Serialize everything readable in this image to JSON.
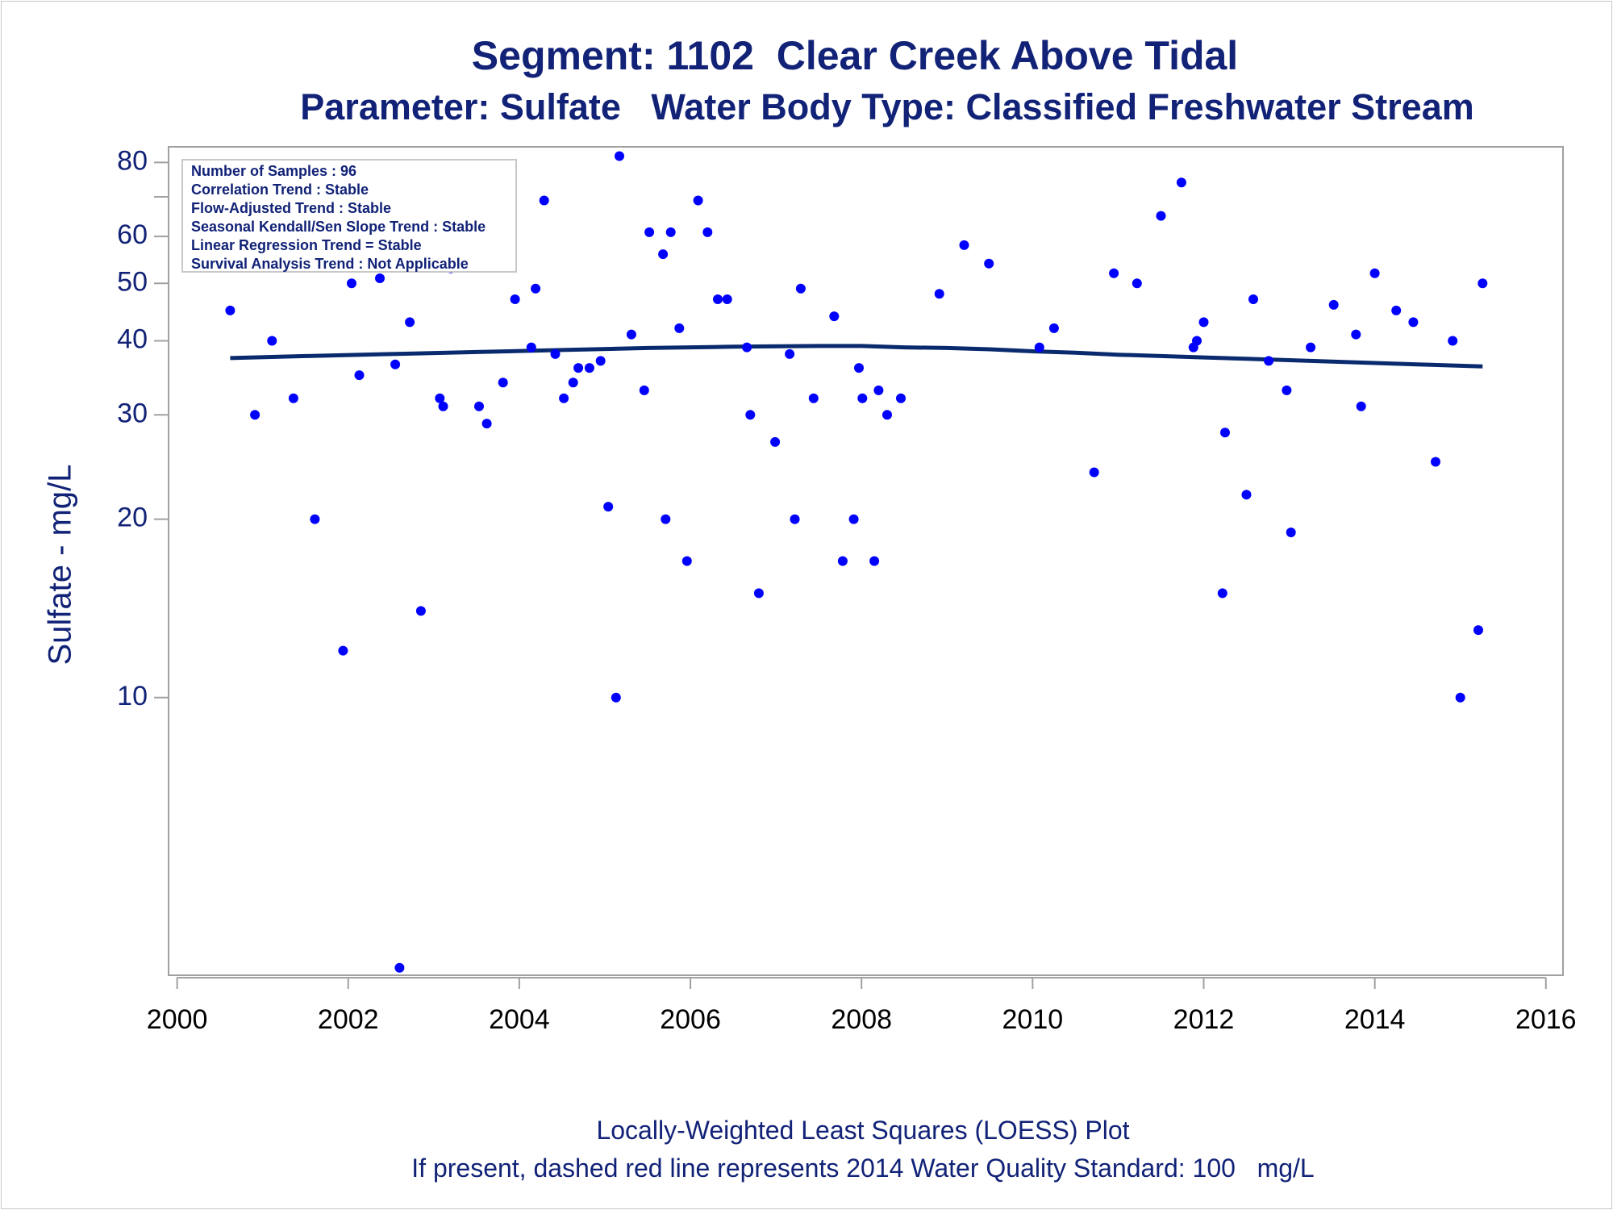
{
  "title": "Segment: 1102  Clear Creek Above Tidal",
  "subtitle": "Parameter: Sulfate   Water Body Type: Classified Freshwater Stream",
  "footnotes": [
    "Locally-Weighted Least Squares (LOESS) Plot",
    "If present, dashed red line represents 2014 Water Quality Standard: 100   mg/L"
  ],
  "stats_box": [
    "Number of Samples : 96",
    "Correlation Trend : Stable",
    "Flow-Adjusted Trend : Stable",
    "Seasonal Kendall/Sen Slope Trend : Stable",
    "Linear Regression Trend = Stable",
    "Survival Analysis Trend : Not Applicable"
  ],
  "colors": {
    "text": "#112277",
    "points": "#0000ff",
    "loess": "#0a2a6e",
    "frame": "#a0a0a0"
  },
  "chart_data": {
    "type": "scatter",
    "title": "Segment: 1102  Clear Creek Above Tidal",
    "subtitle": "Parameter: Sulfate   Water Body Type: Classified Freshwater Stream",
    "xlabel": "",
    "ylabel": "Sulfate - mg/L",
    "yscale": "log",
    "xlim": [
      1999.9,
      2016.2
    ],
    "ylim": [
      3.4,
      85
    ],
    "x_ticks": [
      2000,
      2002,
      2004,
      2006,
      2008,
      2010,
      2012,
      2014,
      2016
    ],
    "y_ticks": [
      10,
      20,
      30,
      40,
      50,
      60,
      80
    ],
    "y_minor_ticks": [
      70
    ],
    "grid": false,
    "series": [
      {
        "type": "scatter",
        "points": [
          [
            2000.62,
            45
          ],
          [
            2000.91,
            30
          ],
          [
            2001.11,
            40
          ],
          [
            2001.36,
            32
          ],
          [
            2001.61,
            20
          ],
          [
            2001.94,
            12
          ],
          [
            2002.04,
            50
          ],
          [
            2002.13,
            35
          ],
          [
            2002.2,
            55
          ],
          [
            2002.37,
            51
          ],
          [
            2002.55,
            36.5
          ],
          [
            2002.6,
            3.5
          ],
          [
            2002.72,
            43
          ],
          [
            2002.85,
            14
          ],
          [
            2003.07,
            32
          ],
          [
            2003.11,
            31
          ],
          [
            2003.2,
            53
          ],
          [
            2003.35,
            57
          ],
          [
            2003.42,
            67
          ],
          [
            2003.53,
            31
          ],
          [
            2003.62,
            29
          ],
          [
            2003.81,
            34
          ],
          [
            2003.95,
            47
          ],
          [
            2004.14,
            39
          ],
          [
            2004.19,
            49
          ],
          [
            2004.29,
            69
          ],
          [
            2004.42,
            38
          ],
          [
            2004.52,
            32
          ],
          [
            2004.63,
            34
          ],
          [
            2004.69,
            36
          ],
          [
            2004.82,
            36
          ],
          [
            2004.95,
            37
          ],
          [
            2005.04,
            21
          ],
          [
            2005.13,
            10
          ],
          [
            2005.17,
            82
          ],
          [
            2005.31,
            41
          ],
          [
            2005.46,
            33
          ],
          [
            2005.52,
            61
          ],
          [
            2005.68,
            56
          ],
          [
            2005.71,
            20
          ],
          [
            2005.77,
            61
          ],
          [
            2005.87,
            42
          ],
          [
            2005.96,
            17
          ],
          [
            2006.09,
            69
          ],
          [
            2006.2,
            61
          ],
          [
            2006.32,
            47
          ],
          [
            2006.43,
            47
          ],
          [
            2006.66,
            39
          ],
          [
            2006.7,
            30
          ],
          [
            2006.8,
            15
          ],
          [
            2006.99,
            27
          ],
          [
            2007.16,
            38
          ],
          [
            2007.22,
            20
          ],
          [
            2007.29,
            49
          ],
          [
            2007.44,
            32
          ],
          [
            2007.68,
            44
          ],
          [
            2007.78,
            17
          ],
          [
            2007.91,
            20
          ],
          [
            2007.97,
            36
          ],
          [
            2008.01,
            32
          ],
          [
            2008.15,
            17
          ],
          [
            2008.2,
            33
          ],
          [
            2008.3,
            30
          ],
          [
            2008.46,
            32
          ],
          [
            2008.91,
            48
          ],
          [
            2009.2,
            58
          ],
          [
            2009.49,
            54
          ],
          [
            2010.08,
            39
          ],
          [
            2010.25,
            42
          ],
          [
            2010.72,
            24
          ],
          [
            2010.95,
            52
          ],
          [
            2011.22,
            50
          ],
          [
            2011.5,
            65
          ],
          [
            2011.74,
            74
          ],
          [
            2011.88,
            39
          ],
          [
            2011.92,
            40
          ],
          [
            2012.0,
            43
          ],
          [
            2012.22,
            15
          ],
          [
            2012.25,
            28
          ],
          [
            2012.5,
            22
          ],
          [
            2012.58,
            47
          ],
          [
            2012.76,
            37
          ],
          [
            2012.97,
            33
          ],
          [
            2013.02,
            19
          ],
          [
            2013.25,
            39
          ],
          [
            2013.52,
            46
          ],
          [
            2013.78,
            41
          ],
          [
            2013.84,
            31
          ],
          [
            2014.0,
            52
          ],
          [
            2014.25,
            45
          ],
          [
            2014.45,
            43
          ],
          [
            2014.71,
            25
          ],
          [
            2014.91,
            40
          ],
          [
            2015.0,
            10
          ],
          [
            2015.21,
            13
          ],
          [
            2015.26,
            50
          ]
        ]
      },
      {
        "type": "line",
        "points": [
          [
            2000.62,
            37.4
          ],
          [
            2001.5,
            37.7
          ],
          [
            2002.5,
            38.0
          ],
          [
            2003.5,
            38.3
          ],
          [
            2004.5,
            38.6
          ],
          [
            2005.5,
            38.9
          ],
          [
            2006.5,
            39.1
          ],
          [
            2007.5,
            39.2
          ],
          [
            2008.0,
            39.2
          ],
          [
            2008.5,
            39.0
          ],
          [
            2009.0,
            38.9
          ],
          [
            2009.5,
            38.7
          ],
          [
            2010.0,
            38.4
          ],
          [
            2010.5,
            38.2
          ],
          [
            2011.0,
            37.9
          ],
          [
            2011.5,
            37.7
          ],
          [
            2012.0,
            37.5
          ],
          [
            2012.5,
            37.3
          ],
          [
            2013.0,
            37.1
          ],
          [
            2013.5,
            36.9
          ],
          [
            2014.0,
            36.7
          ],
          [
            2014.5,
            36.5
          ],
          [
            2015.26,
            36.2
          ]
        ]
      }
    ]
  }
}
